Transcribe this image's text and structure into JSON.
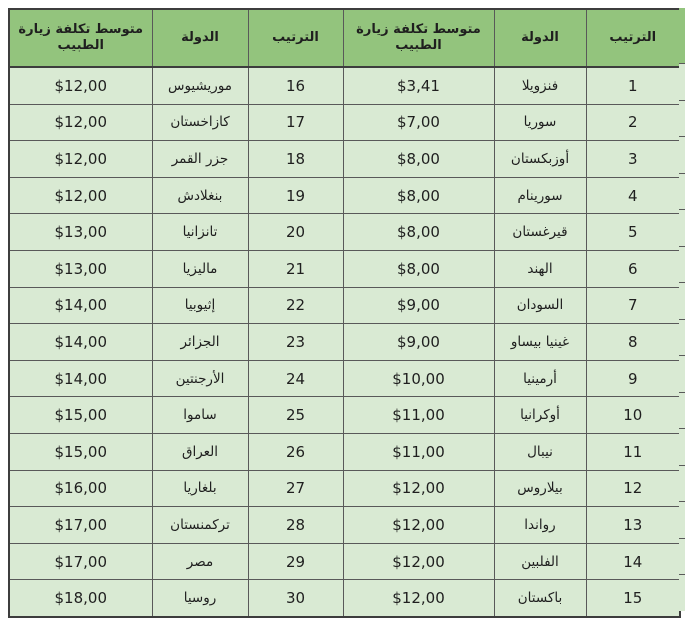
{
  "colors": {
    "header_bg": "#93c47d",
    "row_bg": "#d9ead3",
    "border_inner": "#595959",
    "border_outer": "#3d3d3d",
    "text": "#1f1f1f",
    "page_bg": "#ffffff"
  },
  "header_labels": {
    "rank": "الترتيب",
    "country": "الدولة",
    "cost": "متوسط تكلفة زيارة الطبيب"
  },
  "chart_data": {
    "type": "table",
    "direction": "rtl",
    "layout": "two side-by-side sections of the same ranking, ranks 1-15 on the right half and ranks 16-30 on the left half",
    "columns": [
      "الترتيب",
      "الدولة",
      "متوسط تكلفة زيارة الطبيب"
    ],
    "rows": [
      [
        1,
        "فنزويلا",
        "$3,41"
      ],
      [
        2,
        "سوريا",
        "$7,00"
      ],
      [
        3,
        "أوزبكستان",
        "$8,00"
      ],
      [
        4,
        "سورينام",
        "$8,00"
      ],
      [
        5,
        "قيرغستان",
        "$8,00"
      ],
      [
        6,
        "الهند",
        "$8,00"
      ],
      [
        7,
        "السودان",
        "$9,00"
      ],
      [
        8,
        "غينيا بيساو",
        "$9,00"
      ],
      [
        9,
        "أرمينيا",
        "$10,00"
      ],
      [
        10,
        "أوكرانيا",
        "$11,00"
      ],
      [
        11,
        "نيبال",
        "$11,00"
      ],
      [
        12,
        "بيلاروس",
        "$12,00"
      ],
      [
        13,
        "رواندا",
        "$12,00"
      ],
      [
        14,
        "الفلبين",
        "$12,00"
      ],
      [
        15,
        "باكستان",
        "$12,00"
      ],
      [
        16,
        "موريشيوس",
        "$12,00"
      ],
      [
        17,
        "كازاخستان",
        "$12,00"
      ],
      [
        18,
        "جزر القمر",
        "$12,00"
      ],
      [
        19,
        "بنغلادش",
        "$12,00"
      ],
      [
        20,
        "تانزانيا",
        "$13,00"
      ],
      [
        21,
        "ماليزيا",
        "$13,00"
      ],
      [
        22,
        "إثيوبيا",
        "$14,00"
      ],
      [
        23,
        "الجزائر",
        "$14,00"
      ],
      [
        24,
        "الأرجنتين",
        "$14,00"
      ],
      [
        25,
        "ساموا",
        "$15,00"
      ],
      [
        26,
        "العراق",
        "$15,00"
      ],
      [
        27,
        "بلغاريا",
        "$16,00"
      ],
      [
        28,
        "تركمنستان",
        "$17,00"
      ],
      [
        29,
        "مصر",
        "$17,00"
      ],
      [
        30,
        "روسيا",
        "$18,00"
      ]
    ]
  }
}
